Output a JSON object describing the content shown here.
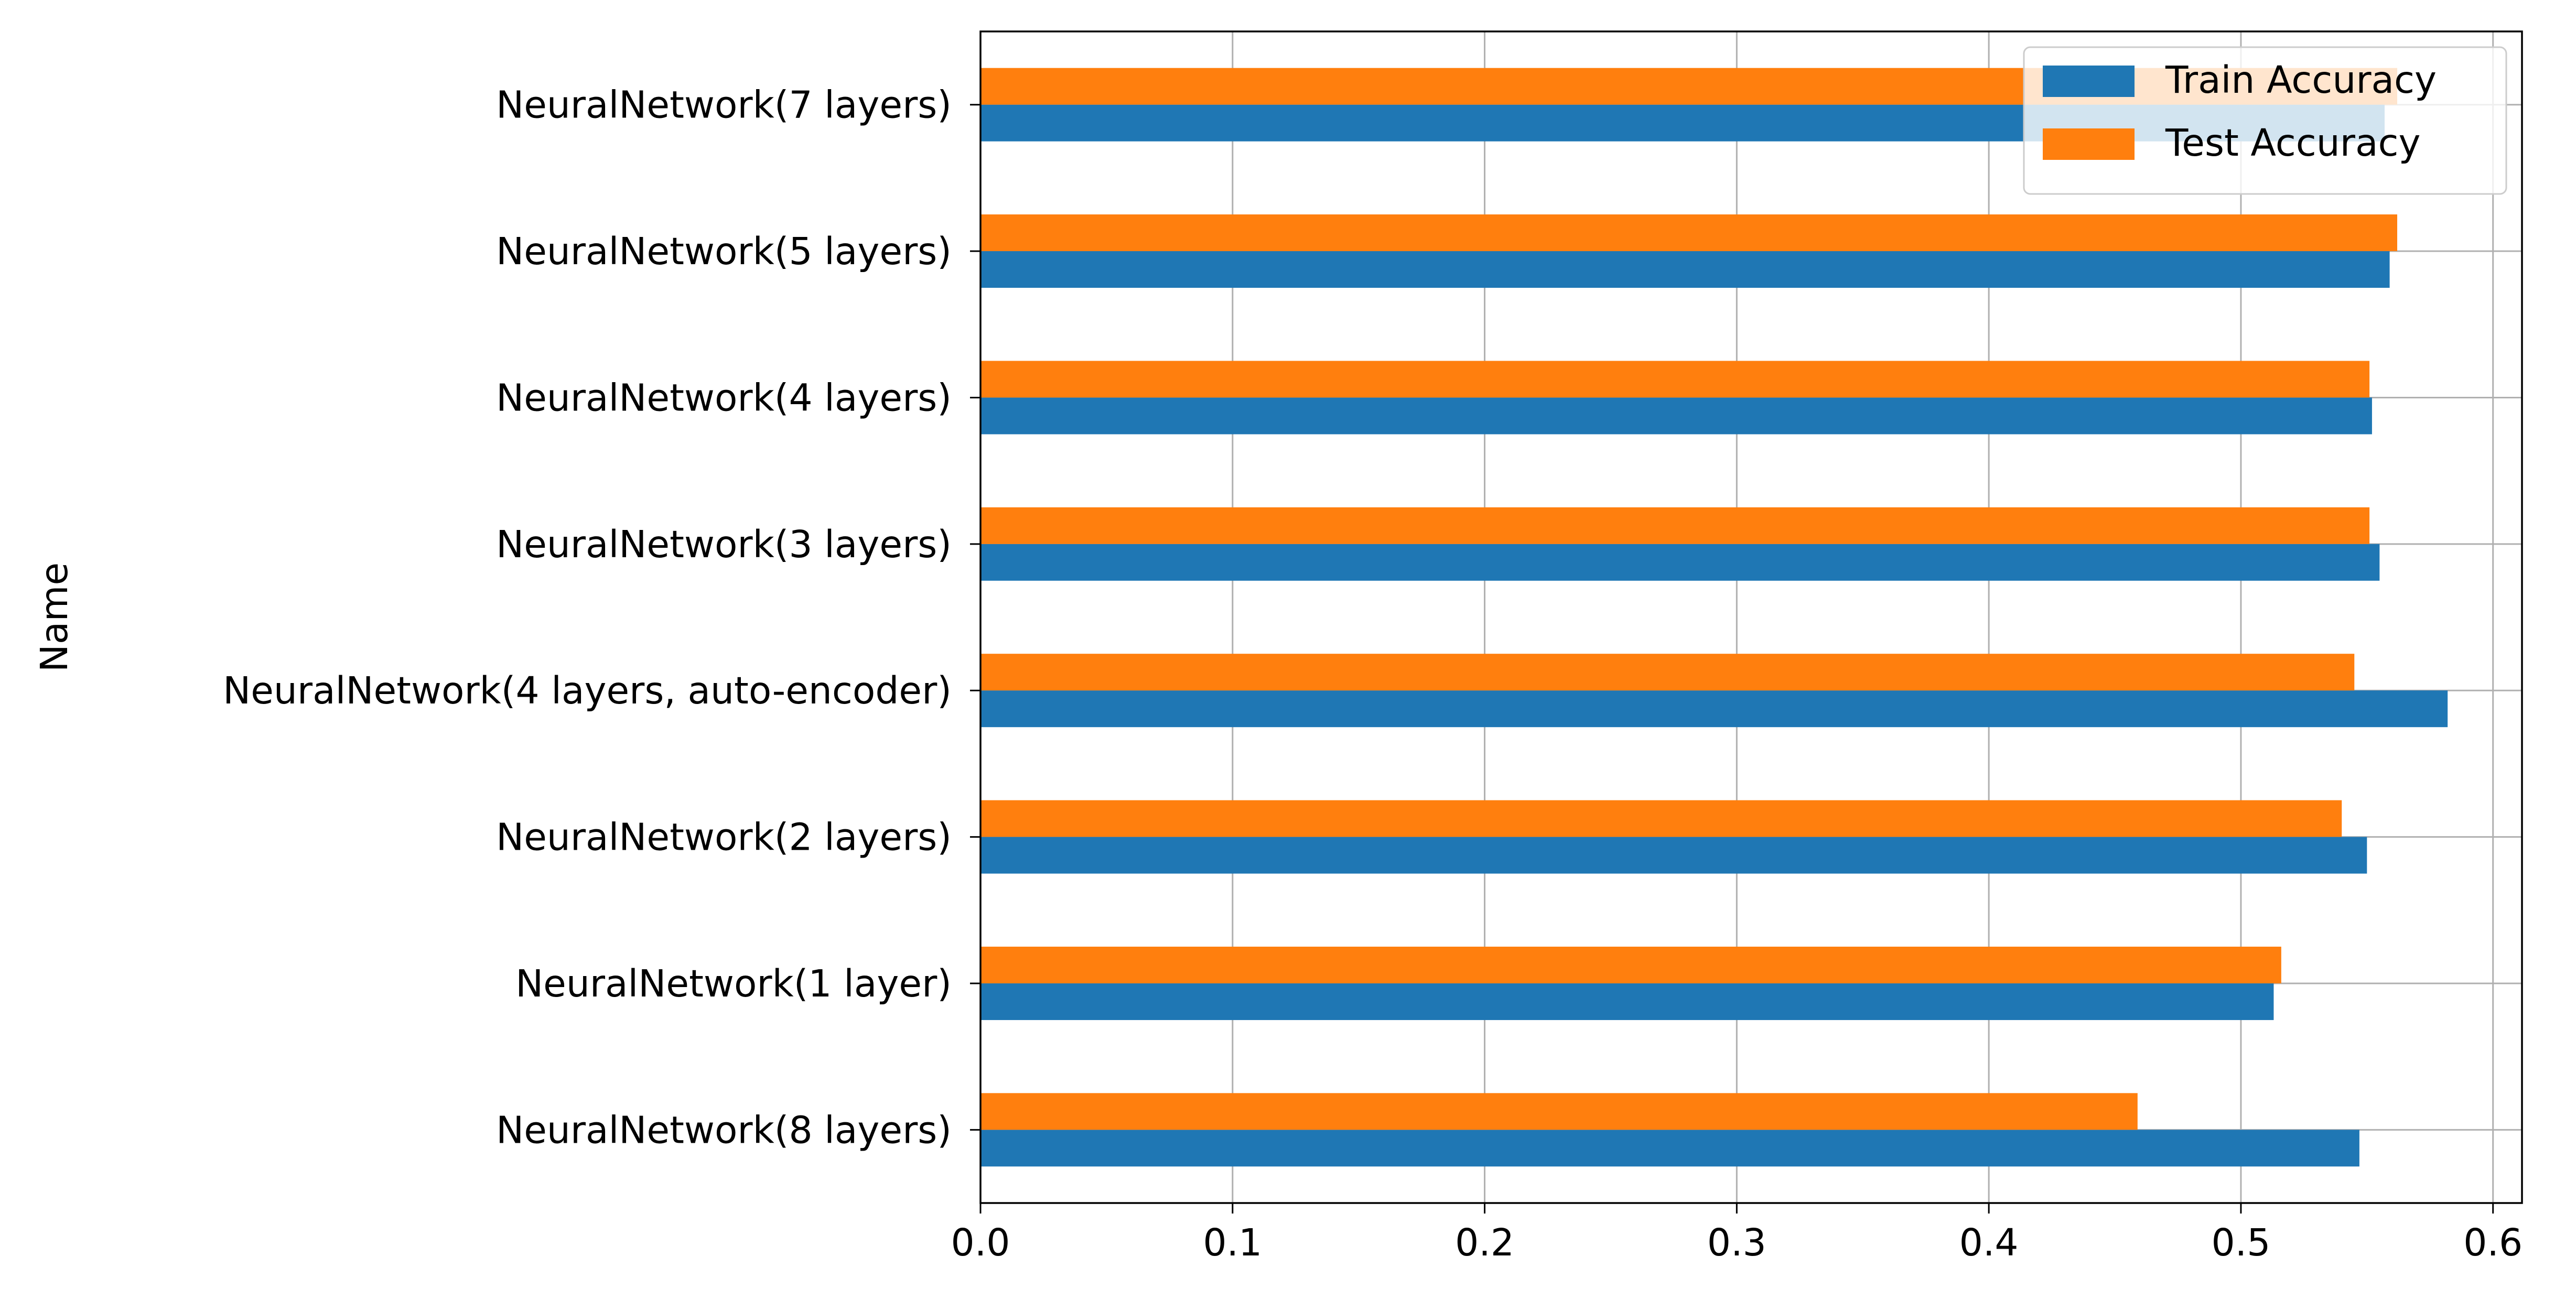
{
  "chart_data": {
    "type": "bar",
    "orientation": "horizontal",
    "categories": [
      "NeuralNetwork(8 layers)",
      "NeuralNetwork(1 layer)",
      "NeuralNetwork(2 layers)",
      "NeuralNetwork(4 layers, auto-encoder)",
      "NeuralNetwork(3 layers)",
      "NeuralNetwork(4 layers)",
      "NeuralNetwork(5 layers)",
      "NeuralNetwork(7 layers)"
    ],
    "series": [
      {
        "name": "Train Accuracy",
        "color": "#1f77b4",
        "values": [
          0.547,
          0.513,
          0.55,
          0.582,
          0.555,
          0.552,
          0.559,
          0.557
        ]
      },
      {
        "name": "Test Accuracy",
        "color": "#ff7f0e",
        "values": [
          0.459,
          0.516,
          0.54,
          0.545,
          0.551,
          0.551,
          0.562,
          0.562
        ]
      }
    ],
    "xlim": [
      0.0,
      0.6115
    ],
    "xticks": [
      "0.0",
      "0.1",
      "0.2",
      "0.3",
      "0.4",
      "0.5",
      "0.6"
    ],
    "xtick_values": [
      0.0,
      0.1,
      0.2,
      0.3,
      0.4,
      0.5,
      0.6
    ],
    "ylabel": "Name",
    "xlabel": "",
    "grid": true,
    "legend_position": "top-right"
  }
}
